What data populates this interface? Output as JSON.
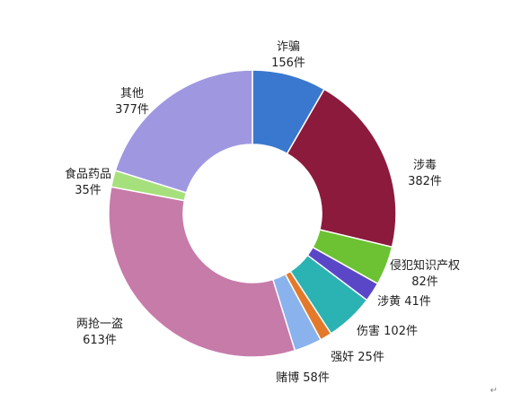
{
  "chart_data": {
    "type": "pie",
    "donut": true,
    "unit": "件",
    "start": "top-clockwise",
    "categories": [
      "诈骗",
      "涉毒",
      "侵犯知识产权",
      "涉黄",
      "伤害",
      "强奸",
      "赌博",
      "两抢一盗",
      "食品药品",
      "其他"
    ],
    "values": [
      156,
      382,
      82,
      41,
      102,
      25,
      58,
      613,
      35,
      377
    ],
    "colors": [
      "#3a78cf",
      "#8b1a3c",
      "#6cc232",
      "#5a47c8",
      "#2bb3b3",
      "#e3792b",
      "#8ab2ec",
      "#c77ba9",
      "#a6e07c",
      "#9f98e0"
    ],
    "labels": [
      {
        "line1": "诈骗",
        "line2": "156件"
      },
      {
        "line1": "涉毒",
        "line2": "382件"
      },
      {
        "line1": "侵犯知识产权",
        "line2": "82件"
      },
      {
        "line1": "涉黄 41件",
        "line2": ""
      },
      {
        "line1": "伤害 102件",
        "line2": ""
      },
      {
        "line1": "强奸 25件",
        "line2": ""
      },
      {
        "line1": "赌博 58件",
        "line2": ""
      },
      {
        "line1": "两抢一盗",
        "line2": "613件"
      },
      {
        "line1": "食品药品",
        "line2": "35件"
      },
      {
        "line1": "其他",
        "line2": "377件"
      }
    ]
  },
  "corner_mark": "↵"
}
